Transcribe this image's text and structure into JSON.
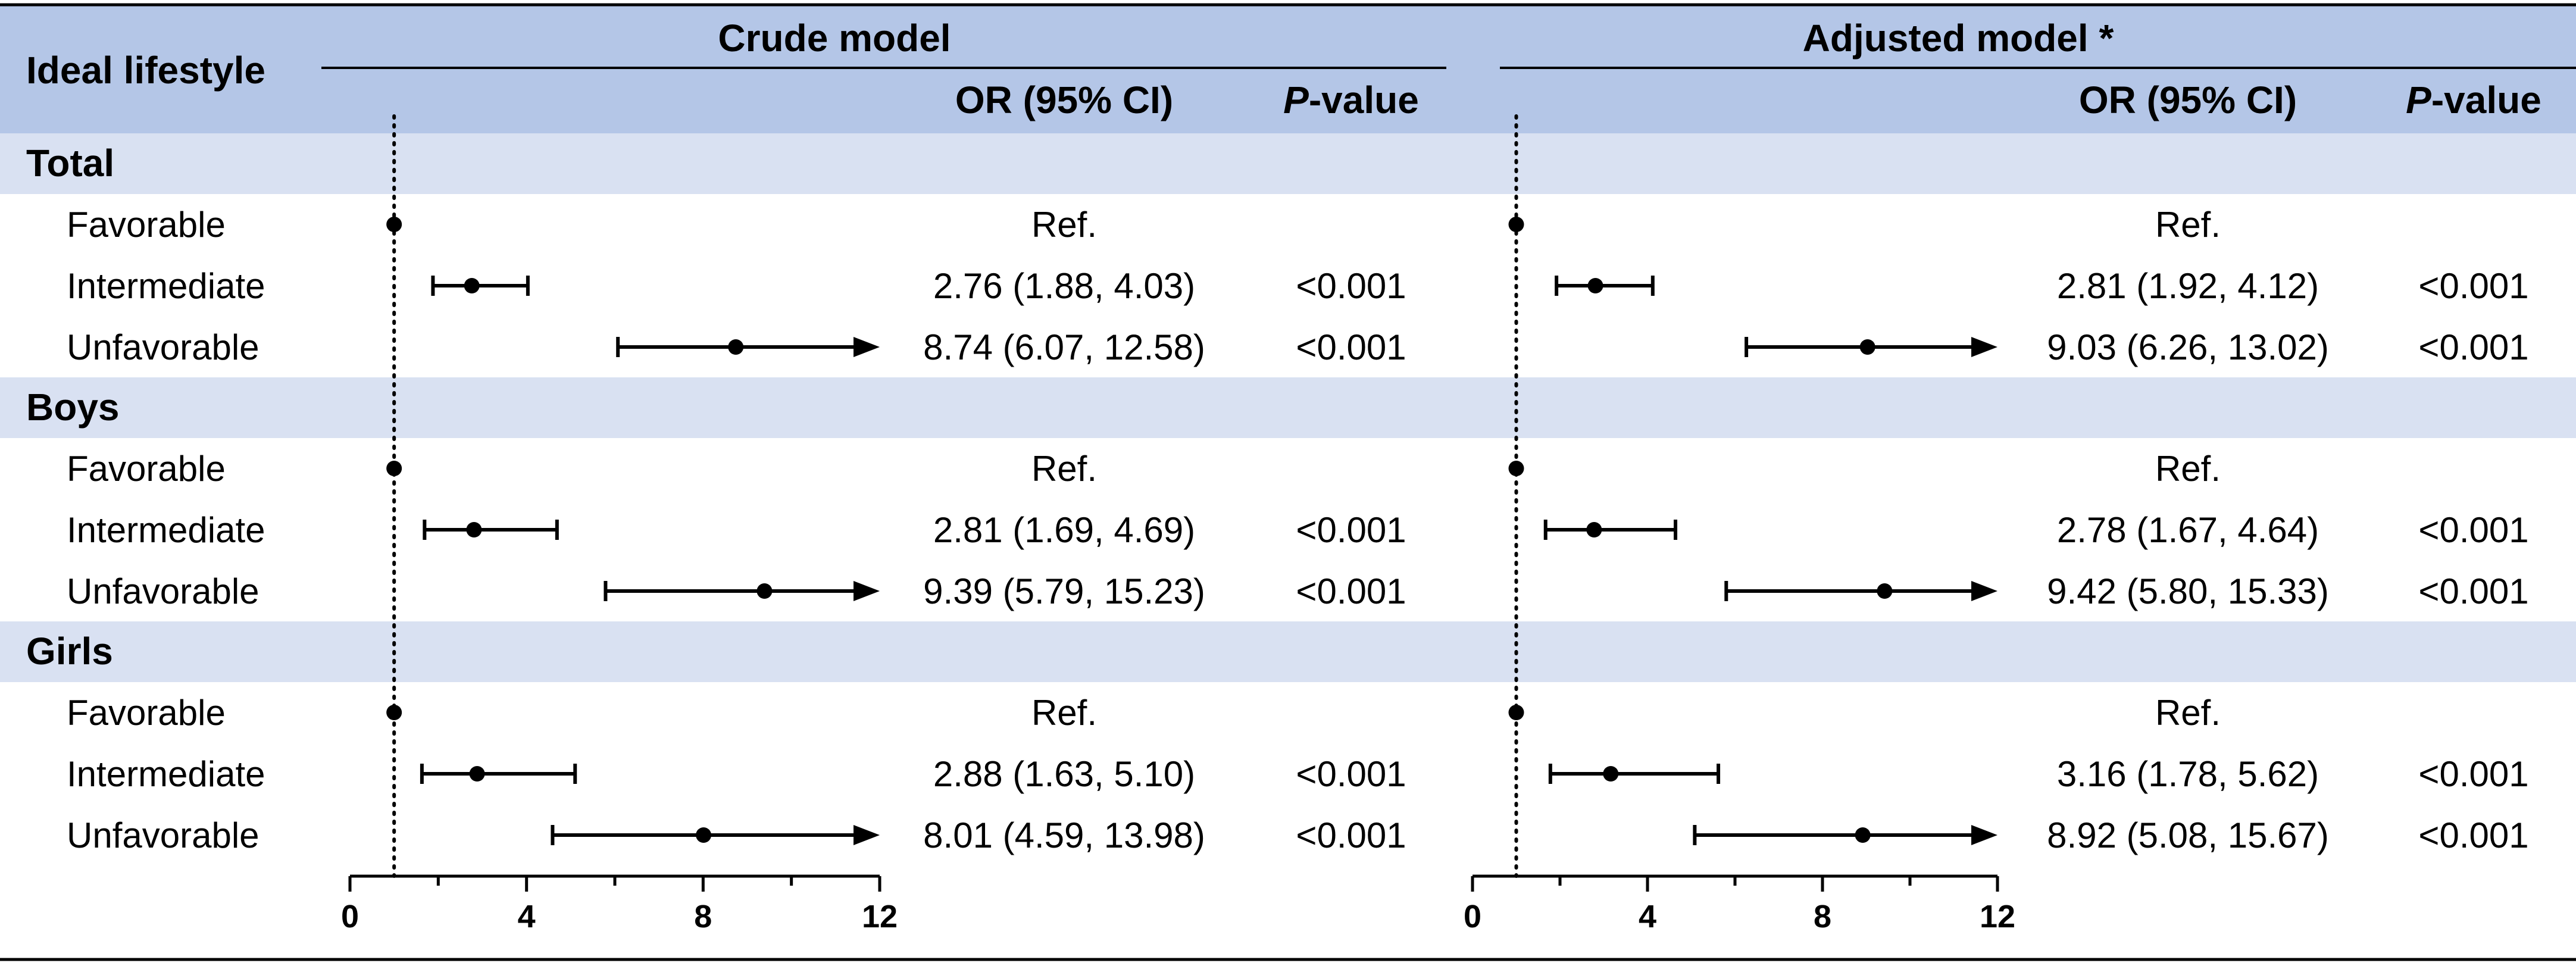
{
  "header": {
    "row_label": "Ideal lifestyle",
    "or_label": "OR (95% CI)",
    "p_label_italic": "P",
    "p_label_rest": "-value"
  },
  "colors": {
    "header_band": "#b4c6e7",
    "group_band": "#d9e1f2",
    "ink": "#000000"
  },
  "chart_data": [
    {
      "type": "forest",
      "title": "Crude model",
      "xlim": [
        0,
        12
      ],
      "xticks": [
        0,
        4,
        8,
        12
      ],
      "minor_ticks": [
        2,
        6,
        10
      ],
      "reference": 1,
      "groups": [
        {
          "name": "Total",
          "rows": [
            {
              "label": "Favorable",
              "or": 1,
              "lo": null,
              "hi": null,
              "text": "Ref.",
              "p": ""
            },
            {
              "label": "Intermediate",
              "or": 2.76,
              "lo": 1.88,
              "hi": 4.03,
              "text": "2.76 (1.88, 4.03)",
              "p": "<0.001"
            },
            {
              "label": "Unfavorable",
              "or": 8.74,
              "lo": 6.07,
              "hi": 12.58,
              "text": "8.74 (6.07, 12.58)",
              "p": "<0.001"
            }
          ]
        },
        {
          "name": "Boys",
          "rows": [
            {
              "label": "Favorable",
              "or": 1,
              "lo": null,
              "hi": null,
              "text": "Ref.",
              "p": ""
            },
            {
              "label": "Intermediate",
              "or": 2.81,
              "lo": 1.69,
              "hi": 4.69,
              "text": "2.81 (1.69, 4.69)",
              "p": "<0.001"
            },
            {
              "label": "Unfavorable",
              "or": 9.39,
              "lo": 5.79,
              "hi": 15.23,
              "text": "9.39 (5.79, 15.23)",
              "p": "<0.001"
            }
          ]
        },
        {
          "name": "Girls",
          "rows": [
            {
              "label": "Favorable",
              "or": 1,
              "lo": null,
              "hi": null,
              "text": "Ref.",
              "p": ""
            },
            {
              "label": "Intermediate",
              "or": 2.88,
              "lo": 1.63,
              "hi": 5.1,
              "text": "2.88 (1.63, 5.10)",
              "p": "<0.001"
            },
            {
              "label": "Unfavorable",
              "or": 8.01,
              "lo": 4.59,
              "hi": 13.98,
              "text": "8.01 (4.59, 13.98)",
              "p": "<0.001"
            }
          ]
        }
      ]
    },
    {
      "type": "forest",
      "title": "Adjusted model *",
      "xlim": [
        0,
        12
      ],
      "xticks": [
        0,
        4,
        8,
        12
      ],
      "minor_ticks": [
        2,
        6,
        10
      ],
      "reference": 1,
      "groups": [
        {
          "name": "Total",
          "rows": [
            {
              "label": "Favorable",
              "or": 1,
              "lo": null,
              "hi": null,
              "text": "Ref.",
              "p": ""
            },
            {
              "label": "Intermediate",
              "or": 2.81,
              "lo": 1.92,
              "hi": 4.12,
              "text": "2.81 (1.92, 4.12)",
              "p": "<0.001"
            },
            {
              "label": "Unfavorable",
              "or": 9.03,
              "lo": 6.26,
              "hi": 13.02,
              "text": "9.03 (6.26, 13.02)",
              "p": "<0.001"
            }
          ]
        },
        {
          "name": "Boys",
          "rows": [
            {
              "label": "Favorable",
              "or": 1,
              "lo": null,
              "hi": null,
              "text": "Ref.",
              "p": ""
            },
            {
              "label": "Intermediate",
              "or": 2.78,
              "lo": 1.67,
              "hi": 4.64,
              "text": "2.78 (1.67, 4.64)",
              "p": "<0.001"
            },
            {
              "label": "Unfavorable",
              "or": 9.42,
              "lo": 5.8,
              "hi": 15.33,
              "text": "9.42 (5.80, 15.33)",
              "p": "<0.001"
            }
          ]
        },
        {
          "name": "Girls",
          "rows": [
            {
              "label": "Favorable",
              "or": 1,
              "lo": null,
              "hi": null,
              "text": "Ref.",
              "p": ""
            },
            {
              "label": "Intermediate",
              "or": 3.16,
              "lo": 1.78,
              "hi": 5.62,
              "text": "3.16 (1.78, 5.62)",
              "p": "<0.001"
            },
            {
              "label": "Unfavorable",
              "or": 8.92,
              "lo": 5.08,
              "hi": 15.67,
              "text": "8.92 (5.08, 15.67)",
              "p": "<0.001"
            }
          ]
        }
      ]
    }
  ]
}
